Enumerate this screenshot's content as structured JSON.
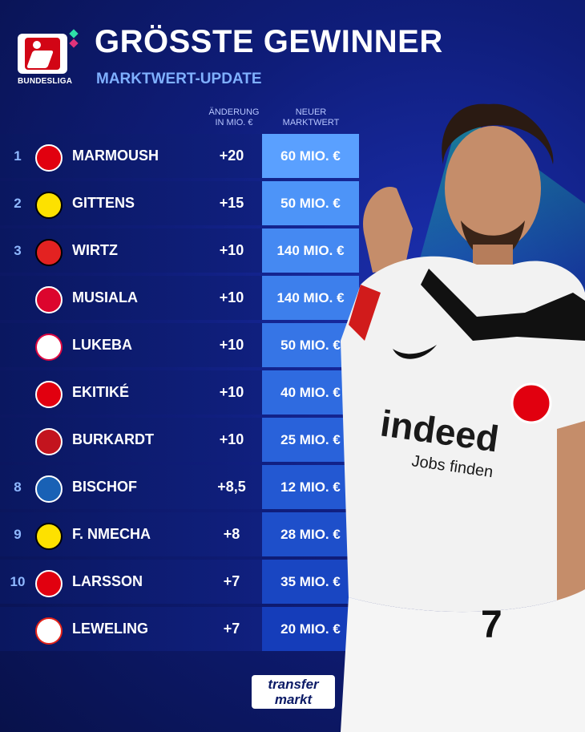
{
  "header": {
    "title": "GRÖSSTE GEWINNER",
    "subtitle": "MARKTWERT-UPDATE",
    "league_logo_text": "BUNDESLIGA"
  },
  "columns": {
    "change_line1": "ÄNDERUNG",
    "change_line2": "IN MIO. €",
    "value_line1": "NEUER",
    "value_line2": "MARKTWERT"
  },
  "rows": [
    {
      "rank": "1",
      "club": "eintracht-frankfurt",
      "name": "MARMOUSH",
      "change": "+20",
      "value": "60 MIO. €"
    },
    {
      "rank": "2",
      "club": "borussia-dortmund",
      "name": "GITTENS",
      "change": "+15",
      "value": "50 MIO. €"
    },
    {
      "rank": "3",
      "club": "bayer-leverkusen",
      "name": "WIRTZ",
      "change": "+10",
      "value": "140 MIO. €"
    },
    {
      "rank": "",
      "club": "fc-bayern",
      "name": "MUSIALA",
      "change": "+10",
      "value": "140 MIO. €"
    },
    {
      "rank": "",
      "club": "rb-leipzig",
      "name": "LUKEBA",
      "change": "+10",
      "value": "50 MIO. €"
    },
    {
      "rank": "",
      "club": "eintracht-frankfurt",
      "name": "EKITIKÉ",
      "change": "+10",
      "value": "40 MIO. €"
    },
    {
      "rank": "",
      "club": "mainz-05",
      "name": "BURKARDT",
      "change": "+10",
      "value": "25 MIO. €"
    },
    {
      "rank": "8",
      "club": "tsg-hoffenheim",
      "name": "BISCHOF",
      "change": "+8,5",
      "value": "12 MIO. €"
    },
    {
      "rank": "9",
      "club": "borussia-dortmund",
      "name": "F. NMECHA",
      "change": "+8",
      "value": "28 MIO. €"
    },
    {
      "rank": "10",
      "club": "eintracht-frankfurt",
      "name": "LARSSON",
      "change": "+7",
      "value": "35 MIO. €"
    },
    {
      "rank": "",
      "club": "vfb-stuttgart",
      "name": "LEWELING",
      "change": "+7",
      "value": "20 MIO. €"
    }
  ],
  "value_colors": [
    "#5aa0ff",
    "#4d94f8",
    "#4589f2",
    "#3d7fec",
    "#3675e6",
    "#2f6be0",
    "#2962da",
    "#2358d2",
    "#1e4fca",
    "#1946c2",
    "#153dba"
  ],
  "club_colors": {
    "eintracht-frankfurt": {
      "bg": "#e1000f",
      "fg": "#ffffff"
    },
    "borussia-dortmund": {
      "bg": "#fde100",
      "fg": "#000000"
    },
    "bayer-leverkusen": {
      "bg": "#e32221",
      "fg": "#000000"
    },
    "fc-bayern": {
      "bg": "#dc052d",
      "fg": "#ffffff"
    },
    "rb-leipzig": {
      "bg": "#ffffff",
      "fg": "#dd0741"
    },
    "mainz-05": {
      "bg": "#c3141e",
      "fg": "#ffffff"
    },
    "tsg-hoffenheim": {
      "bg": "#1961b5",
      "fg": "#ffffff"
    },
    "vfb-stuttgart": {
      "bg": "#ffffff",
      "fg": "#e32219"
    }
  },
  "player_shirt": {
    "sponsor_main": "indeed",
    "sponsor_sub": "Jobs finden",
    "number": "7"
  },
  "footer": {
    "brand_line1": "transfer",
    "brand_line2": "markt"
  }
}
